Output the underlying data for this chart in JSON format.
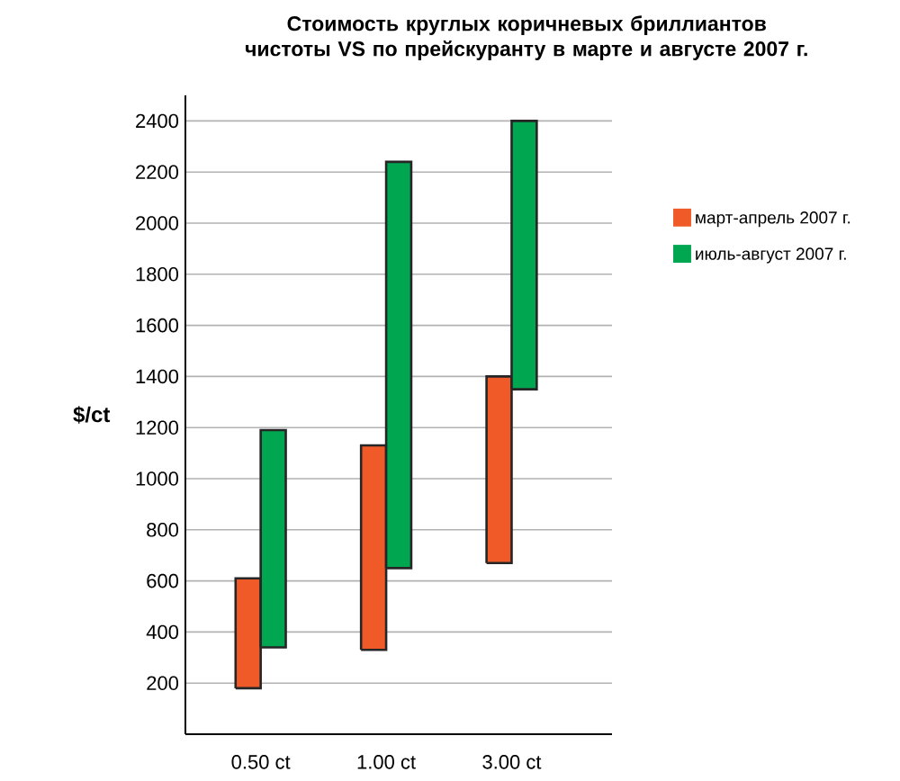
{
  "chart_data": {
    "type": "bar",
    "title": "Стоимость круглых коричневых бриллиантов чистоты VS по прейскуранту в марте и августе 2007 г.",
    "ylabel": "$/ct",
    "categories": [
      "0.50 ct",
      "1.00 ct",
      "3.00 ct"
    ],
    "series": [
      {
        "name": "март-апрель 2007 г.",
        "color": "#f05a28",
        "base": [
          180,
          330,
          670
        ],
        "values": [
          430,
          800,
          730
        ]
      },
      {
        "name": "июль-август 2007 г.",
        "color": "#00a650",
        "base": [
          340,
          650,
          1350
        ],
        "values": [
          850,
          1590,
          1050
        ]
      }
    ],
    "ylim": [
      0,
      2500
    ],
    "yticks": [
      200,
      400,
      600,
      800,
      1000,
      1200,
      1400,
      1600,
      1800,
      2000,
      2200,
      2400
    ],
    "grid": "y",
    "legend": "right"
  }
}
